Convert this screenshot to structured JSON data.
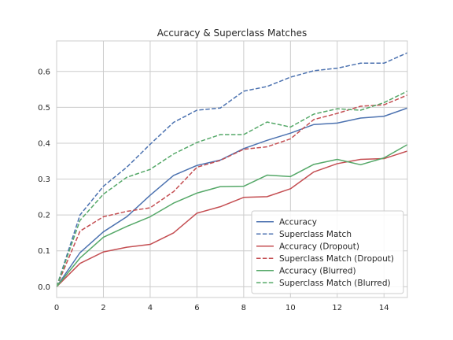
{
  "chart_data": {
    "type": "line",
    "title": "Accuracy & Superclass Matches",
    "xlabel": "",
    "ylabel": "",
    "xlim": [
      0,
      15
    ],
    "ylim": [
      -0.03,
      0.685
    ],
    "xticks": [
      0,
      2,
      4,
      6,
      8,
      10,
      12,
      14
    ],
    "yticks": [
      0.0,
      0.1,
      0.2,
      0.3,
      0.4,
      0.5,
      0.6
    ],
    "grid": true,
    "legend_position": "lower-right",
    "x": [
      0,
      1,
      2,
      3,
      4,
      5,
      6,
      7,
      8,
      9,
      10,
      11,
      12,
      13,
      14,
      15
    ],
    "series": [
      {
        "name": "Accuracy",
        "color": "#4c72b0",
        "dash": "solid",
        "values": [
          0.0,
          0.095,
          0.153,
          0.195,
          0.255,
          0.31,
          0.338,
          0.353,
          0.385,
          0.408,
          0.428,
          0.452,
          0.456,
          0.47,
          0.475,
          0.498
        ]
      },
      {
        "name": "Superclass Match",
        "color": "#4c72b0",
        "dash": "dashed",
        "values": [
          0.0,
          0.2,
          0.28,
          0.333,
          0.397,
          0.458,
          0.492,
          0.498,
          0.545,
          0.558,
          0.584,
          0.602,
          0.609,
          0.623,
          0.623,
          0.652
        ]
      },
      {
        "name": "Accuracy (Dropout)",
        "color": "#c44e52",
        "dash": "solid",
        "values": [
          0.0,
          0.065,
          0.097,
          0.11,
          0.118,
          0.15,
          0.205,
          0.223,
          0.249,
          0.251,
          0.273,
          0.32,
          0.343,
          0.355,
          0.357,
          0.378
        ]
      },
      {
        "name": "Superclass Match (Dropout)",
        "color": "#c44e52",
        "dash": "dashed",
        "values": [
          0.0,
          0.155,
          0.195,
          0.21,
          0.22,
          0.265,
          0.333,
          0.352,
          0.383,
          0.39,
          0.412,
          0.466,
          0.483,
          0.503,
          0.507,
          0.534
        ]
      },
      {
        "name": "Accuracy (Blurred)",
        "color": "#55a868",
        "dash": "solid",
        "values": [
          0.0,
          0.08,
          0.138,
          0.168,
          0.195,
          0.233,
          0.261,
          0.279,
          0.28,
          0.311,
          0.307,
          0.341,
          0.355,
          0.34,
          0.359,
          0.396
        ]
      },
      {
        "name": "Superclass Match (Blurred)",
        "color": "#55a868",
        "dash": "dashed",
        "values": [
          0.0,
          0.185,
          0.258,
          0.305,
          0.327,
          0.37,
          0.402,
          0.424,
          0.424,
          0.459,
          0.445,
          0.481,
          0.496,
          0.492,
          0.513,
          0.545
        ]
      }
    ]
  }
}
